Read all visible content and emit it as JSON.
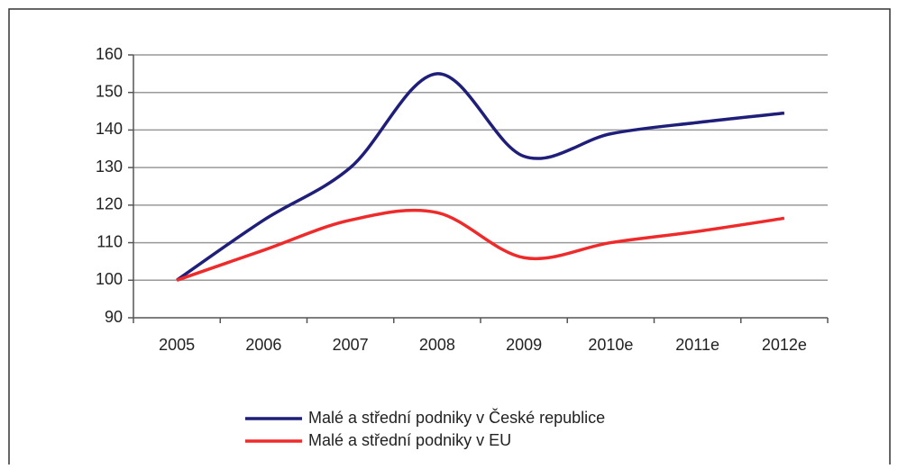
{
  "chart_data": {
    "type": "line",
    "categories": [
      "2005",
      "2006",
      "2007",
      "2008",
      "2009",
      "2010e",
      "2011e",
      "2012e"
    ],
    "series": [
      {
        "name": "Malé a střední podniky v České republice",
        "color": "#1f1f7a",
        "values": [
          100,
          116,
          130,
          155,
          133,
          139,
          142,
          144.5
        ]
      },
      {
        "name": "Malé a střední podniky v EU",
        "color": "#ee2a2a",
        "values": [
          100,
          108,
          116,
          118,
          106,
          110,
          113,
          116.5
        ]
      }
    ],
    "ylim": [
      90,
      160
    ],
    "yticks": [
      90,
      100,
      110,
      120,
      130,
      140,
      150,
      160
    ],
    "grid": true,
    "smooth": true
  }
}
